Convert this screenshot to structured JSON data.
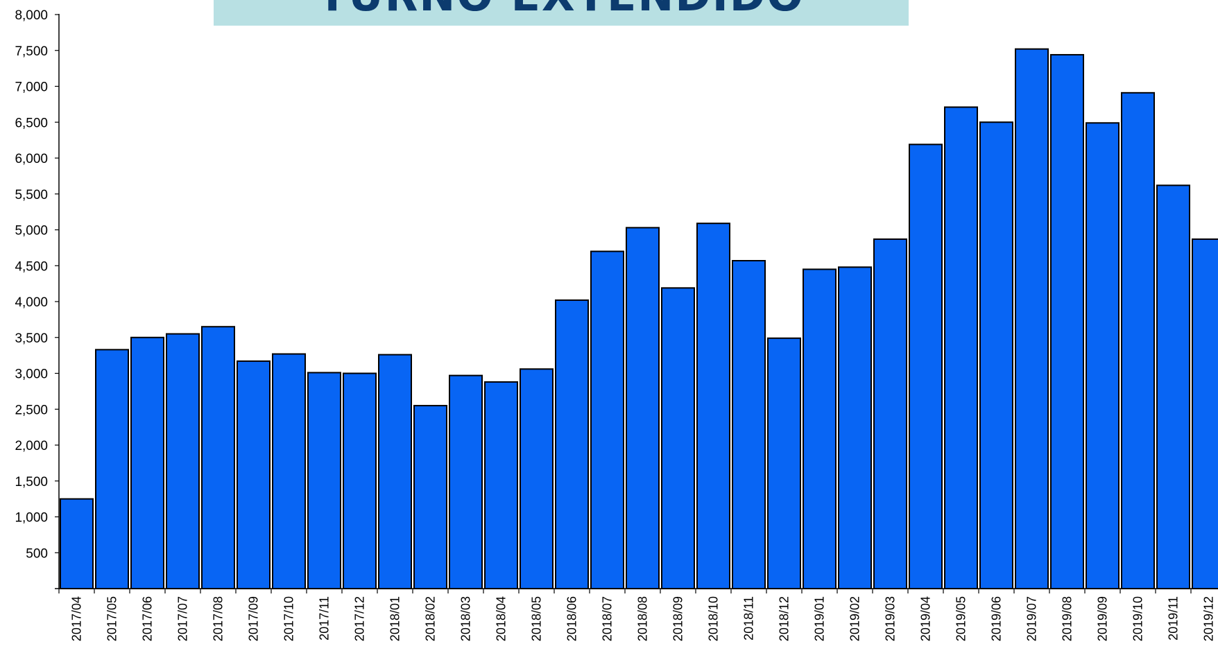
{
  "banner": {
    "title": "TURNO EXTENDIDO"
  },
  "colors": {
    "bar_fill": "#0865f4",
    "bar_stroke": "#000000",
    "banner_bg": "#b8e0e3",
    "banner_text": "#0c3b6e"
  },
  "chart_data": {
    "type": "bar",
    "title": "",
    "xlabel": "",
    "ylabel": "",
    "ylim": [
      0,
      8000
    ],
    "yticks": [
      "500",
      "1,000",
      "1,500",
      "2,000",
      "2,500",
      "3,000",
      "3,500",
      "4,000",
      "4,500",
      "5,000",
      "5,500",
      "6,000",
      "6,500",
      "7,000",
      "7,500",
      "8,000"
    ],
    "ytick_values": [
      500,
      1000,
      1500,
      2000,
      2500,
      3000,
      3500,
      4000,
      4500,
      5000,
      5500,
      6000,
      6500,
      7000,
      7500,
      8000
    ],
    "grid": false,
    "legend": "none",
    "categories": [
      "2017/04",
      "2017/05",
      "2017/06",
      "2017/07",
      "2017/08",
      "2017/09",
      "2017/10",
      "2017/11",
      "2017/12",
      "2018/01",
      "2018/02",
      "2018/03",
      "2018/04",
      "2018/05",
      "2018/06",
      "2018/07",
      "2018/08",
      "2018/09",
      "2018/10",
      "2018/11",
      "2018/12",
      "2019/01",
      "2019/02",
      "2019/03",
      "2019/04",
      "2019/05",
      "2019/06",
      "2019/07",
      "2019/08",
      "2019/09",
      "2019/10",
      "2019/11",
      "2019/12"
    ],
    "values": [
      1250,
      3330,
      3500,
      3550,
      3650,
      3170,
      3270,
      3010,
      3000,
      3260,
      2550,
      2970,
      2880,
      3060,
      4020,
      4700,
      5030,
      4190,
      5090,
      4570,
      3490,
      4450,
      4480,
      4870,
      6190,
      6710,
      6500,
      7520,
      7440,
      6490,
      6910,
      5620,
      4870
    ]
  }
}
